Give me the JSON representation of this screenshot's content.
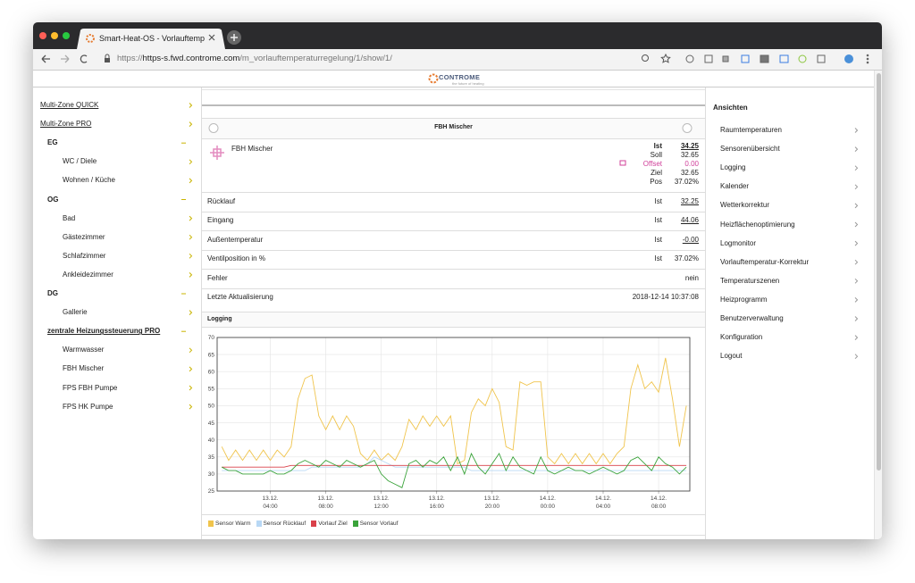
{
  "browser": {
    "tab_title": "Smart-Heat-OS - Vorlauftempe",
    "url": {
      "scheme": "https://",
      "host": "https-s.fwd.controme.com",
      "path": "/m_vorlauftemperaturregelung/1/show/1/"
    }
  },
  "logo": {
    "name": "CONTROME",
    "tagline": "the future of heating"
  },
  "left_nav": [
    {
      "label": "Multi-Zone QUICK",
      "level": 0,
      "expanded": false
    },
    {
      "label": "Multi-Zone PRO",
      "level": 0,
      "expanded": false
    },
    {
      "label": "EG",
      "level": 1,
      "expanded": true
    },
    {
      "label": "WC / Diele",
      "level": 2,
      "expanded": false
    },
    {
      "label": "Wohnen / Küche",
      "level": 2,
      "expanded": false
    },
    {
      "label": "OG",
      "level": 1,
      "expanded": true
    },
    {
      "label": "Bad",
      "level": 2,
      "expanded": false
    },
    {
      "label": "Gästezimmer",
      "level": 2,
      "expanded": false
    },
    {
      "label": "Schlafzimmer",
      "level": 2,
      "expanded": false
    },
    {
      "label": "Ankleidezimmer",
      "level": 2,
      "expanded": false
    },
    {
      "label": "DG",
      "level": 1,
      "expanded": true
    },
    {
      "label": "Gallerie",
      "level": 2,
      "expanded": false
    },
    {
      "label": "zentrale Heizungssteuerung PRO",
      "level": 1,
      "expanded": true
    },
    {
      "label": "Warmwasser",
      "level": 2,
      "expanded": false
    },
    {
      "label": "FBH Mischer",
      "level": 2,
      "expanded": false
    },
    {
      "label": "FPS FBH Pumpe",
      "level": 2,
      "expanded": false
    },
    {
      "label": "FPS HK Pumpe",
      "level": 2,
      "expanded": false
    }
  ],
  "right_nav": {
    "title": "Ansichten",
    "items": [
      "Raumtemperaturen",
      "Sensorenübersicht",
      "Logging",
      "Kalender",
      "Wetterkorrektur",
      "Heizflächenoptimierung",
      "Logmonitor",
      "Vorlauftemperatur-Korrektur",
      "Temperaturszenen",
      "Heizprogramm",
      "Benutzerverwaltung",
      "Konfiguration",
      "Logout"
    ]
  },
  "panel": {
    "title": "FBH Mischer",
    "device": "FBH Mischer",
    "readings": [
      {
        "label": "Ist",
        "value": "34.25"
      },
      {
        "label": "Soll",
        "value": "32.65"
      },
      {
        "label": "Offset",
        "value": "0.00"
      },
      {
        "label": "Ziel",
        "value": "32.65"
      },
      {
        "label": "Pos",
        "value": "37.02%"
      }
    ],
    "rows": [
      {
        "label": "Rücklauf",
        "key": "Ist",
        "value": "32.25"
      },
      {
        "label": "Eingang",
        "key": "Ist",
        "value": "44.06"
      },
      {
        "label": "Außentemperatur",
        "key": "Ist",
        "value": "-0.00"
      },
      {
        "label": "Ventilposition in %",
        "key": "Ist",
        "value": "37.02%"
      },
      {
        "label": "Fehler",
        "value": "nein"
      },
      {
        "label": "Letzte Aktualisierung",
        "value": "2018-12-14 10:37:08"
      }
    ],
    "logging_title": "Logging"
  },
  "chart_data": {
    "type": "line",
    "x": [
      "13.12. 00:30",
      "13.12. 01:00",
      "13.12. 01:30",
      "13.12. 02:00",
      "13.12. 02:30",
      "13.12. 03:00",
      "13.12. 03:30",
      "13.12. 04:00",
      "13.12. 04:30",
      "13.12. 05:00",
      "13.12. 05:30",
      "13.12. 06:00",
      "13.12. 06:30",
      "13.12. 07:00",
      "13.12. 07:30",
      "13.12. 08:00",
      "13.12. 08:30",
      "13.12. 09:00",
      "13.12. 09:30",
      "13.12. 10:00",
      "13.12. 10:30",
      "13.12. 11:00",
      "13.12. 11:30",
      "13.12. 12:00",
      "13.12. 12:30",
      "13.12. 13:00",
      "13.12. 13:30",
      "13.12. 14:00",
      "13.12. 14:30",
      "13.12. 15:00",
      "13.12. 15:30",
      "13.12. 16:00",
      "13.12. 16:30",
      "13.12. 17:00",
      "13.12. 17:30",
      "13.12. 18:00",
      "13.12. 18:30",
      "13.12. 19:00",
      "13.12. 19:30",
      "13.12. 20:00",
      "13.12. 20:30",
      "13.12. 21:00",
      "13.12. 21:30",
      "13.12. 22:00",
      "13.12. 22:30",
      "13.12. 23:00",
      "13.12. 23:30",
      "14.12. 00:00",
      "14.12. 00:30",
      "14.12. 01:00",
      "14.12. 01:30",
      "14.12. 02:00",
      "14.12. 02:30",
      "14.12. 03:00",
      "14.12. 03:30",
      "14.12. 04:00",
      "14.12. 04:30",
      "14.12. 05:00",
      "14.12. 05:30",
      "14.12. 06:00",
      "14.12. 06:30",
      "14.12. 07:00",
      "14.12. 07:30",
      "14.12. 08:00",
      "14.12. 08:30",
      "14.12. 09:00",
      "14.12. 09:30",
      "14.12. 10:00"
    ],
    "series": [
      {
        "name": "Sensor Warm",
        "color": "#f0c44c",
        "values": [
          38,
          34,
          37,
          34,
          37,
          34,
          37,
          34,
          37,
          35,
          38,
          52,
          58,
          59,
          47,
          43,
          47,
          43,
          47,
          44,
          36,
          34,
          37,
          34,
          36,
          34,
          38,
          46,
          43,
          47,
          44,
          47,
          44,
          47,
          33,
          34,
          48,
          52,
          50,
          55,
          51,
          38,
          37,
          57,
          56,
          57,
          57,
          35,
          33,
          36,
          33,
          36,
          33,
          36,
          33,
          36,
          33,
          36,
          38,
          55,
          62,
          55,
          57,
          54,
          64,
          52,
          38,
          50
        ]
      },
      {
        "name": "Sensor Rücklauf",
        "color": "#b8d8f5",
        "values": [
          31,
          31,
          31,
          31,
          31,
          31,
          31,
          31,
          31,
          31,
          31,
          31,
          31,
          32,
          32,
          32,
          32,
          32,
          32,
          32,
          32,
          33,
          35,
          34,
          33,
          32,
          32,
          32,
          32,
          32,
          32,
          32,
          32,
          32,
          32,
          32,
          31,
          31,
          31,
          31,
          31,
          31,
          31,
          31,
          31,
          31,
          31,
          31,
          31,
          31,
          31,
          31,
          31,
          31,
          31,
          31,
          31,
          31,
          31,
          31,
          31,
          31,
          31,
          31,
          31,
          31,
          31,
          31
        ]
      },
      {
        "name": "Vorlauf Ziel",
        "color": "#d9404a",
        "values": [
          32,
          32,
          32,
          32,
          32,
          32,
          32,
          32,
          32,
          32,
          32.5,
          32.5,
          32.5,
          32.5,
          32.5,
          32.5,
          32.5,
          32.5,
          32.5,
          32.5,
          32.5,
          32.5,
          32.5,
          32.5,
          32.5,
          32.5,
          32.5,
          32.5,
          32.5,
          32.5,
          32.5,
          32.5,
          32.5,
          32.5,
          32.5,
          32.5,
          32.5,
          32.5,
          32.5,
          32.5,
          32.5,
          32.5,
          32.5,
          32.5,
          32.5,
          32.5,
          32.5,
          32.5,
          32.5,
          32.5,
          32.5,
          32.5,
          32.5,
          32.5,
          32.5,
          32.5,
          32.5,
          32.5,
          32.5,
          32.5,
          32.5,
          32.5,
          32.5,
          32.5,
          32.5,
          32.5,
          32.5,
          32.5
        ]
      },
      {
        "name": "Sensor Vorlauf",
        "color": "#3aa33a",
        "values": [
          32,
          31,
          31,
          30,
          30,
          30,
          30,
          31,
          30,
          30,
          31,
          33,
          34,
          33,
          32,
          34,
          33,
          32,
          34,
          33,
          32,
          33,
          34,
          30,
          28,
          27,
          26,
          33,
          34,
          32,
          34,
          33,
          35,
          31,
          35,
          30,
          36,
          32,
          30,
          33,
          36,
          31,
          35,
          32,
          31,
          30,
          35,
          31,
          30,
          31,
          32,
          31,
          31,
          30,
          31,
          32,
          31,
          30,
          31,
          34,
          35,
          33,
          31,
          35,
          33,
          32,
          30,
          32
        ]
      }
    ],
    "xlim": [
      "13.12. 00:10",
      "14.12. 10:15"
    ],
    "xticks": [
      "13.12. 04:00",
      "13.12. 08:00",
      "13.12. 12:00",
      "13.12. 16:00",
      "13.12. 20:00",
      "14.12. 00:00",
      "14.12. 04:00",
      "14.12. 08:00"
    ],
    "ylim": [
      25,
      70
    ],
    "yticks": [
      25,
      30,
      35,
      40,
      45,
      50,
      55,
      60,
      65,
      70
    ],
    "grid": true
  }
}
